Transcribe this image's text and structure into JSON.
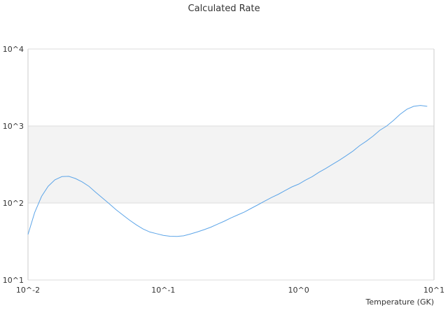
{
  "chart_data": {
    "type": "line",
    "title": "Calculated Rate",
    "xlabel": "Temperature (GK)",
    "ylabel": "",
    "x_scale": "log",
    "y_scale": "log",
    "xlim": [
      0.01,
      10
    ],
    "ylim": [
      10,
      10000
    ],
    "x_ticks": [
      {
        "value": 0.01,
        "label": "10^-2"
      },
      {
        "value": 0.1,
        "label": "10^-1"
      },
      {
        "value": 1,
        "label": "10^0"
      },
      {
        "value": 10,
        "label": "10^1"
      }
    ],
    "y_ticks": [
      {
        "value": 10,
        "label": "10^1"
      },
      {
        "value": 100,
        "label": "10^2"
      },
      {
        "value": 1000,
        "label": "10^3"
      },
      {
        "value": 10000,
        "label": "10^4"
      }
    ],
    "shaded_band": {
      "from": 100,
      "to": 1000,
      "color": "#f3f3f3"
    },
    "grid": true,
    "colors": {
      "line": "#5da5e8",
      "grid": "#dddddd",
      "axis": "#cccccc"
    },
    "series": [
      {
        "x": [
          0.01,
          0.0112,
          0.0126,
          0.0141,
          0.0158,
          0.0178,
          0.02,
          0.0224,
          0.0251,
          0.0282,
          0.0316,
          0.0355,
          0.0398,
          0.0447,
          0.0501,
          0.0562,
          0.0631,
          0.0708,
          0.0794,
          0.0891,
          0.1,
          0.112,
          0.126,
          0.141,
          0.158,
          0.178,
          0.2,
          0.224,
          0.251,
          0.282,
          0.316,
          0.355,
          0.398,
          0.447,
          0.501,
          0.562,
          0.631,
          0.708,
          0.794,
          0.891,
          1.0,
          1.12,
          1.26,
          1.41,
          1.58,
          1.78,
          2.0,
          2.24,
          2.51,
          2.82,
          3.16,
          3.55,
          3.98,
          4.47,
          5.01,
          5.62,
          6.31,
          7.08,
          7.94,
          8.91
        ],
        "y": [
          39,
          75,
          122,
          165,
          200,
          220,
          222,
          208,
          188,
          165,
          138,
          116,
          98,
          82,
          70,
          60,
          52,
          46,
          42,
          40,
          38,
          37,
          36.8,
          37.5,
          39.5,
          42,
          45,
          48.5,
          53,
          58,
          64,
          70,
          76.5,
          85.5,
          95,
          106,
          118,
          130,
          145,
          162,
          176,
          198,
          220,
          250,
          280,
          318,
          360,
          410,
          470,
          555,
          635,
          740,
          880,
          1000,
          1180,
          1420,
          1650,
          1800,
          1850,
          1800
        ]
      }
    ]
  }
}
